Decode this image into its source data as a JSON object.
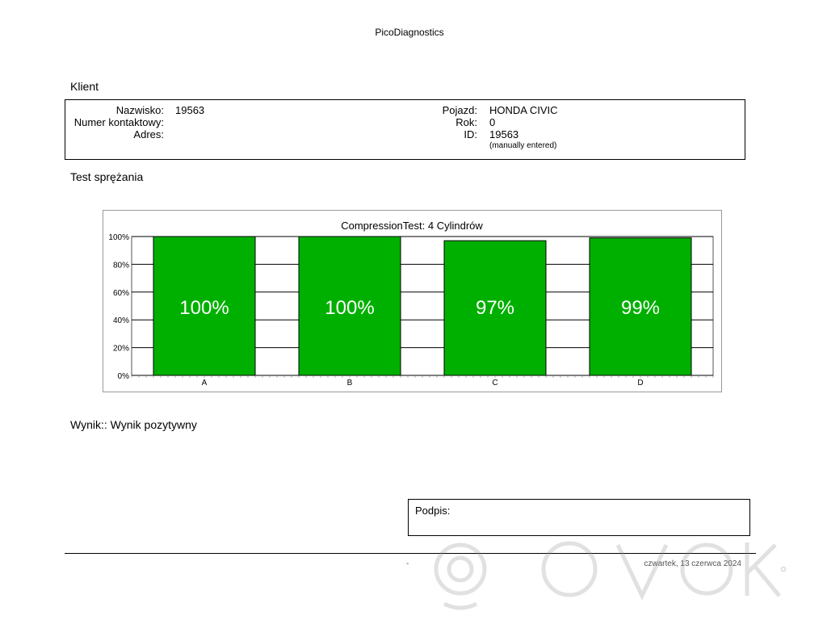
{
  "app": {
    "title": "PicoDiagnostics"
  },
  "client": {
    "heading": "Klient",
    "name_label": "Nazwisko:",
    "name_value": "19563",
    "contact_label": "Numer kontaktowy:",
    "contact_value": "",
    "address_label": "Adres:",
    "address_value": "",
    "vehicle_label": "Pojazd:",
    "vehicle_value": "HONDA CIVIC",
    "year_label": "Rok:",
    "year_value": "0",
    "id_label": "ID:",
    "id_value": "19563",
    "id_note": "(manually entered)"
  },
  "test": {
    "heading": "Test sprężania"
  },
  "chart_data": {
    "type": "bar",
    "title": "CompressionTest: 4 Cylindrów",
    "categories": [
      "A",
      "B",
      "C",
      "D"
    ],
    "values": [
      100,
      100,
      97,
      99
    ],
    "value_labels": [
      "100%",
      "100%",
      "97%",
      "99%"
    ],
    "yticks": [
      "0%",
      "20%",
      "40%",
      "60%",
      "80%",
      "100%"
    ],
    "ylim": [
      0,
      100
    ],
    "grid": true,
    "bar_color": "#00b000",
    "xlabel": "",
    "ylabel": ""
  },
  "result": {
    "text": "Wynik:: Wynik pozytywny"
  },
  "signature": {
    "label": "Podpis:"
  },
  "footer": {
    "dash": "-",
    "date": "czwartek, 13 czerwca 2024"
  }
}
